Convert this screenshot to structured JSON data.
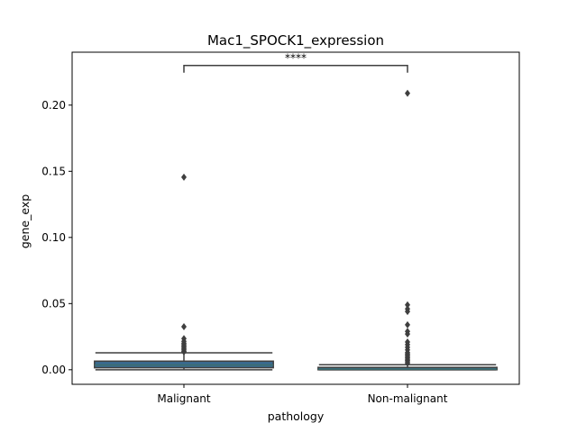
{
  "chart_data": {
    "type": "box",
    "title": "Mac1_SPOCK1_expression",
    "xlabel": "pathology",
    "ylabel": "gene_exp",
    "categories": [
      "Malignant",
      "Non-malignant"
    ],
    "ylim": [
      -0.011,
      0.24
    ],
    "yticks": [
      0.0,
      0.05,
      0.1,
      0.15,
      0.2
    ],
    "ytick_labels": [
      "0.00",
      "0.05",
      "0.10",
      "0.15",
      "0.20"
    ],
    "grid": false,
    "legend": "none",
    "boxes": [
      {
        "name": "Malignant",
        "whisker_low": 0.0,
        "q1": 0.0015,
        "median": 0.0035,
        "q3": 0.0065,
        "whisker_high": 0.0128,
        "outliers": [
          0.1455,
          0.0325,
          0.0235,
          0.0215,
          0.02,
          0.019,
          0.018,
          0.017,
          0.016,
          0.015,
          0.014,
          0.0135
        ]
      },
      {
        "name": "Non-malignant",
        "whisker_low": 0.0,
        "q1": 0.0,
        "median": 0.0005,
        "q3": 0.0018,
        "whisker_high": 0.0038,
        "outliers": [
          0.209,
          0.049,
          0.046,
          0.044,
          0.034,
          0.029,
          0.027,
          0.021,
          0.019,
          0.017,
          0.015,
          0.013,
          0.012,
          0.011,
          0.01,
          0.009,
          0.008,
          0.007,
          0.006,
          0.005
        ]
      }
    ],
    "significance": {
      "between": [
        "Malignant",
        "Non-malignant"
      ],
      "y": 0.23,
      "label": "****"
    },
    "colors": {
      "box_fill": [
        "#3a6a8f",
        "#3a6a8f"
      ],
      "line": "#3f3f3f",
      "median_line": "#3c6e6e",
      "outlier": "#3f3f3f",
      "frame": "#000000"
    }
  }
}
